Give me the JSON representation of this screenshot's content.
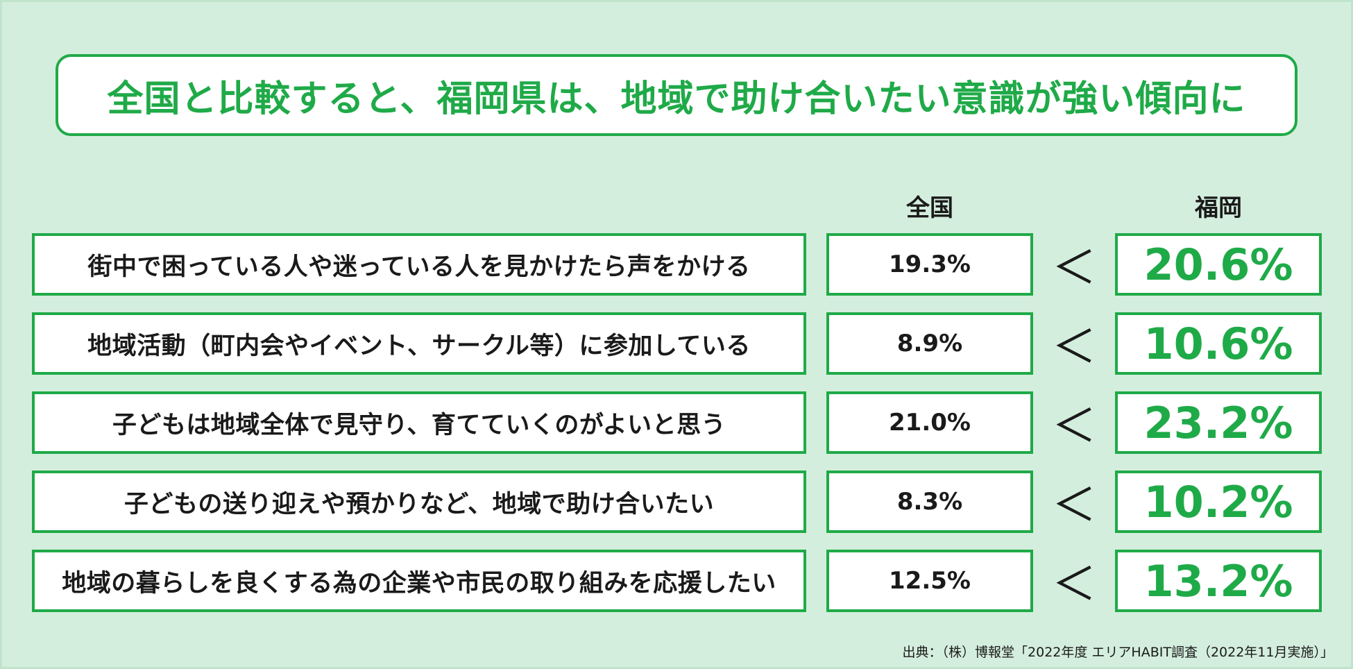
{
  "title": "全国と比較すると、福岡県は、地域で助け合いたい意識が強い傾向に",
  "chart_data": {
    "type": "table",
    "columns": [
      "全国",
      "福岡"
    ],
    "comparator": "＜",
    "unit": "%",
    "rows": [
      {
        "label": "街中で困っている人や迷っている人を見かけたら声をかける",
        "national": "19.3%",
        "fukuoka": "20.6%"
      },
      {
        "label": "地域活動（町内会やイベント、サークル等）に参加している",
        "national": "8.9%",
        "fukuoka": "10.6%"
      },
      {
        "label": "子どもは地域全体で見守り、育てていくのがよいと思う",
        "national": "21.0%",
        "fukuoka": "23.2%"
      },
      {
        "label": "子どもの送り迎えや預かりなど、地域で助け合いたい",
        "national": "8.3%",
        "fukuoka": "10.2%"
      },
      {
        "label": "地域の暮らしを良くする為の企業や市民の取り組みを応援したい",
        "national": "12.5%",
        "fukuoka": "13.2%"
      }
    ]
  },
  "source": "出典：（株）博報堂「2022年度 エリアHABIT調査（2022年11月実施）」",
  "colors": {
    "background": "#d4eedd",
    "accent": "#1faa48",
    "box": "#ffffff"
  }
}
